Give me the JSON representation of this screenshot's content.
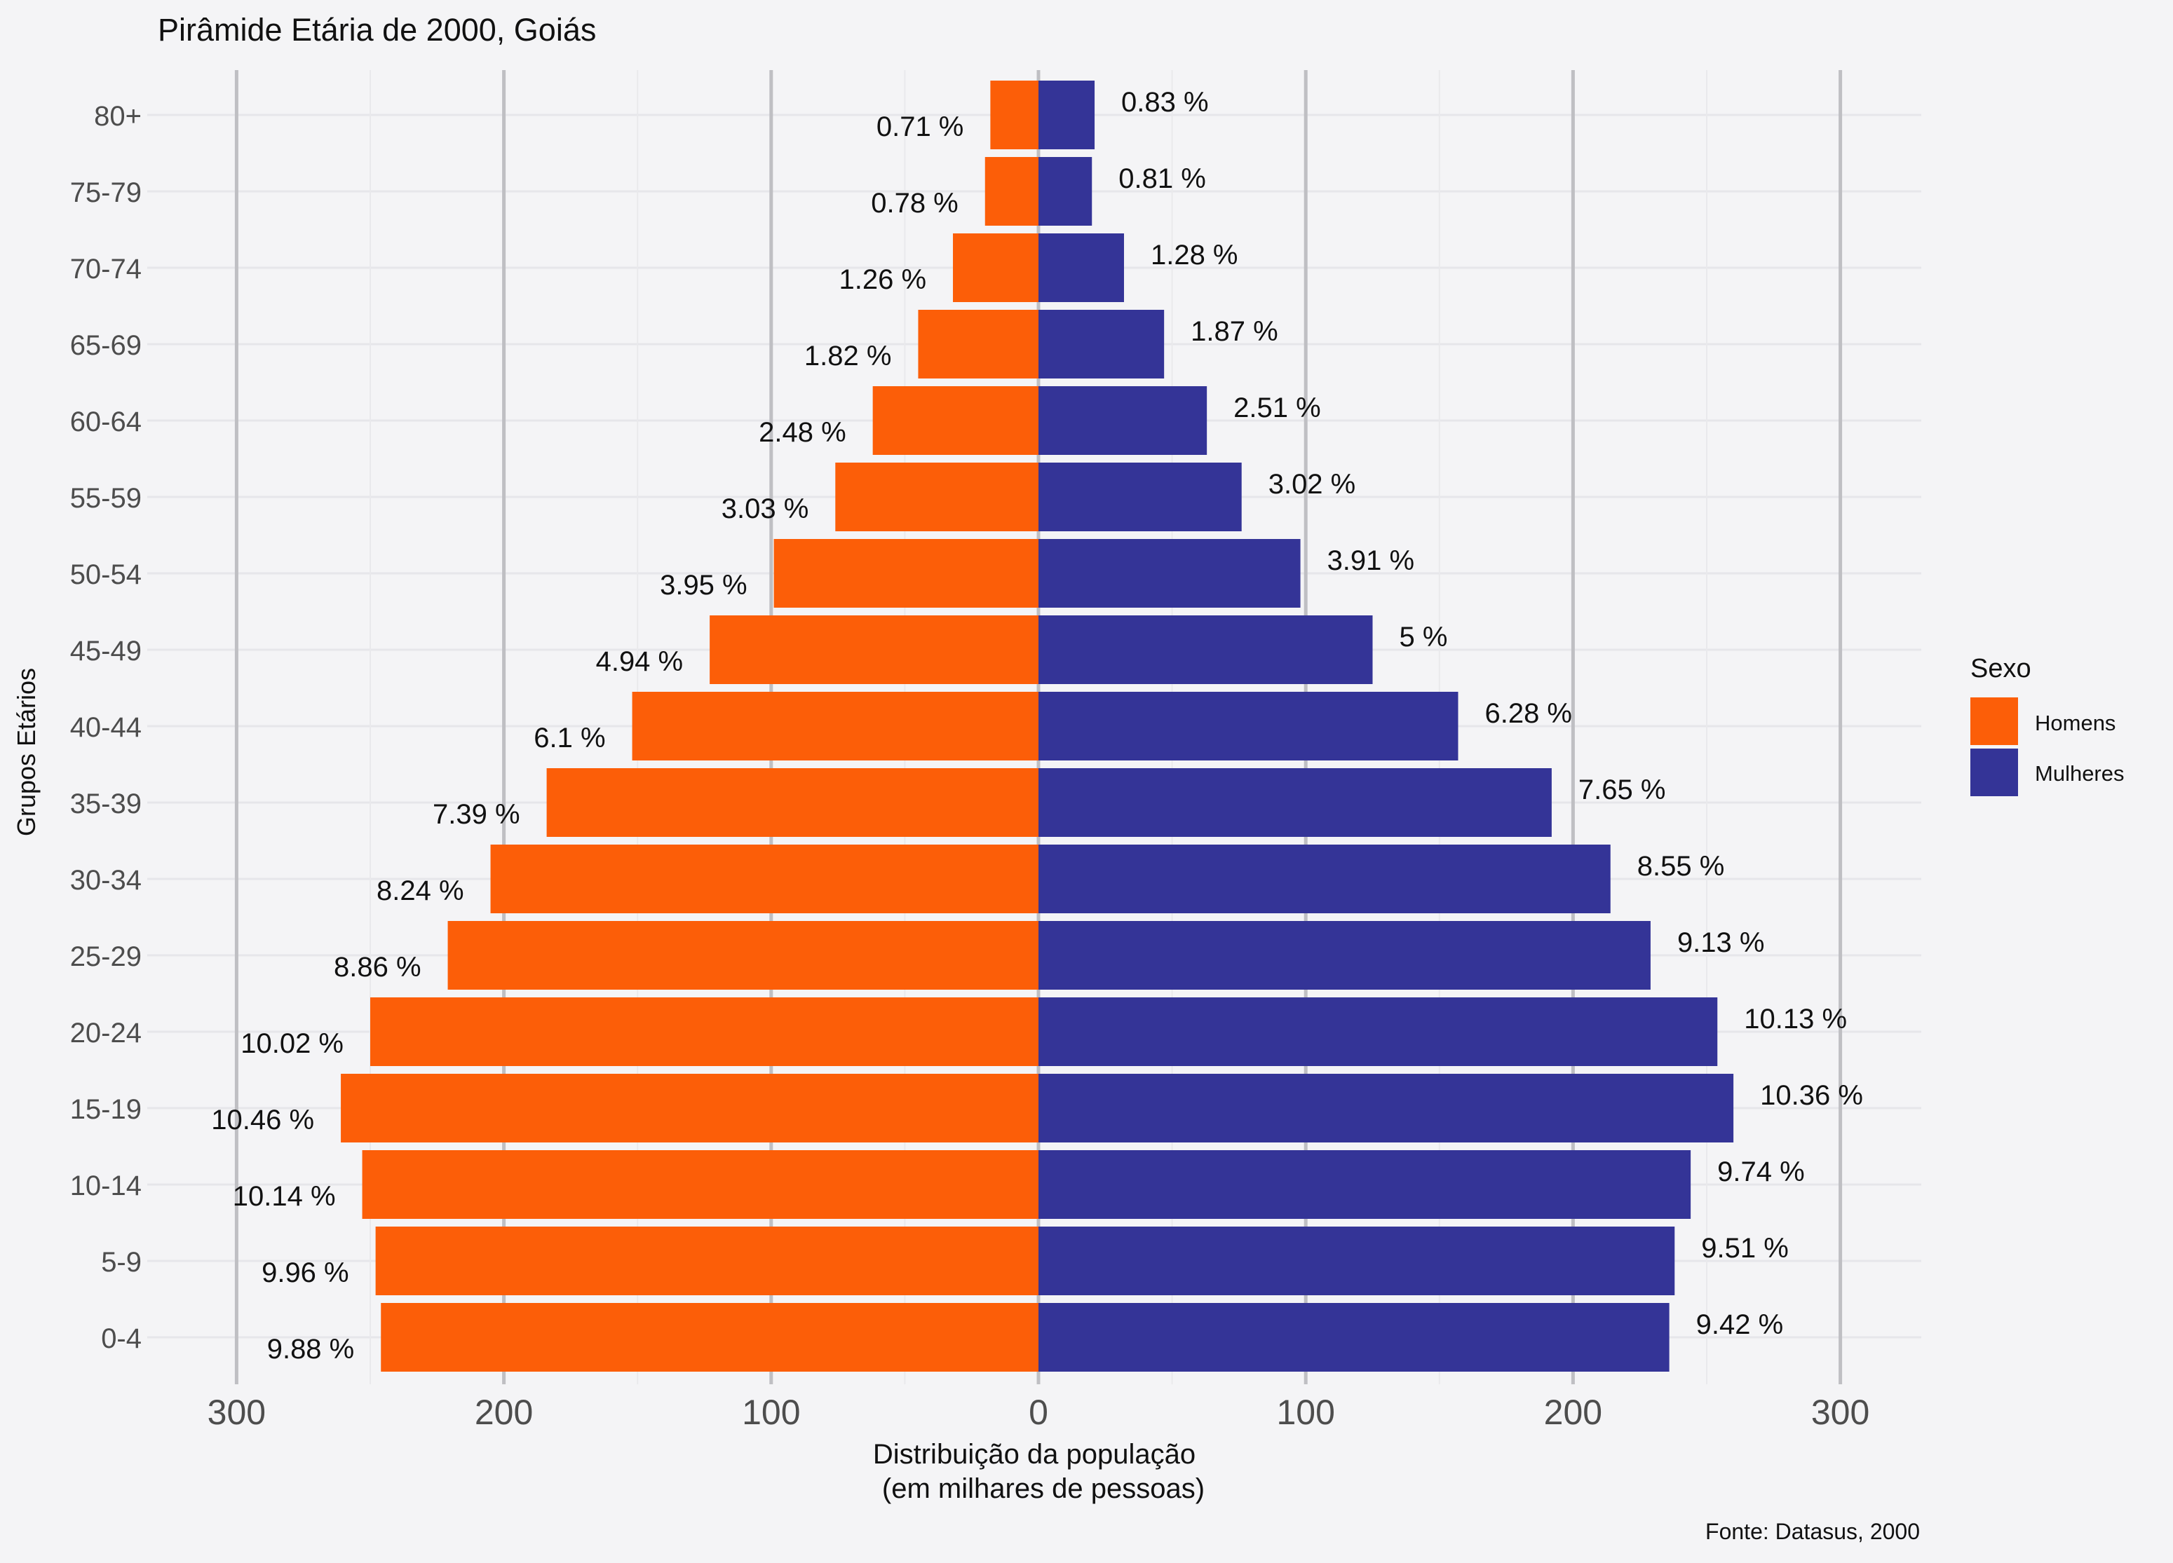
{
  "chart_data": {
    "type": "bar",
    "orientation": "horizontal",
    "variant": "population-pyramid",
    "title": "Pirâmide Etária de 2000, Goiás",
    "xlabel_line1": "Distribuição da população",
    "xlabel_line2": "(em milhares de pessoas)",
    "ylabel": "Grupos Etários",
    "caption": "Fonte: Datasus, 2000",
    "xlim": [
      -320,
      330
    ],
    "x_ticks": [
      -300,
      -200,
      -100,
      0,
      100,
      200,
      300
    ],
    "x_tick_labels": [
      "300",
      "200",
      "100",
      "0",
      "100",
      "200",
      "300"
    ],
    "categories": [
      "0-4",
      "5-9",
      "10-14",
      "15-19",
      "20-24",
      "25-29",
      "30-34",
      "35-39",
      "40-44",
      "45-49",
      "50-54",
      "55-59",
      "60-64",
      "65-69",
      "70-74",
      "75-79",
      "80+"
    ],
    "legend": {
      "title": "Sexo",
      "position": "right"
    },
    "grid": true,
    "series": [
      {
        "name": "Homens",
        "color": "#fc5e08",
        "values": [
          246,
          248,
          253,
          261,
          250,
          221,
          205,
          184,
          152,
          123,
          99,
          76,
          62,
          45,
          32,
          20,
          18
        ],
        "labels": [
          "9.88 %",
          "9.96 %",
          "10.14 %",
          "10.46 %",
          "10.02 %",
          "8.86 %",
          "8.24 %",
          "7.39 %",
          "6.1 %",
          "4.94 %",
          "3.95 %",
          "3.03 %",
          "2.48 %",
          "1.82 %",
          "1.26 %",
          "0.78 %",
          "0.71 %"
        ]
      },
      {
        "name": "Mulheres",
        "color": "#343497",
        "values": [
          236,
          238,
          244,
          260,
          254,
          229,
          214,
          192,
          157,
          125,
          98,
          76,
          63,
          47,
          32,
          20,
          21
        ],
        "labels": [
          "9.42 %",
          "9.51 %",
          "9.74 %",
          "10.36 %",
          "10.13 %",
          "9.13 %",
          "8.55 %",
          "7.65 %",
          "6.28 %",
          "5 %",
          "3.91 %",
          "3.02 %",
          "2.51 %",
          "1.87 %",
          "1.28 %",
          "0.81 %",
          "0.83 %"
        ]
      }
    ]
  }
}
